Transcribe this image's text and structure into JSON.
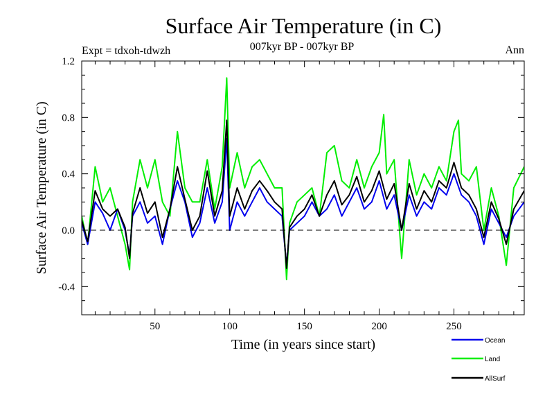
{
  "chart_data": {
    "type": "line",
    "title": "Surface Air Temperature (in C)",
    "subtitle": "007kyr BP - 007kyr BP",
    "left_label": "Expt = tdxoh-tdwzh",
    "right_label": "Ann",
    "xlabel": "Time (in years since start)",
    "ylabel": "Surface Air Temperature (in C)",
    "xlim": [
      1,
      297
    ],
    "ylim": [
      -0.6,
      1.2
    ],
    "xticks": [
      50,
      100,
      150,
      200,
      250
    ],
    "yticks": [
      -0.4,
      0.0,
      0.4,
      0.8,
      1.2
    ],
    "ytick_labels": [
      "-0.4",
      "0.0",
      "0.4",
      "0.8",
      "1.2"
    ],
    "reference_line": 0.0,
    "legend_position": "bottom-right",
    "series": [
      {
        "name": "Ocean",
        "color": "#0000ee",
        "x": [
          1,
          5,
          10,
          15,
          20,
          25,
          30,
          33,
          35,
          40,
          45,
          50,
          55,
          60,
          65,
          70,
          75,
          80,
          85,
          90,
          95,
          98,
          100,
          105,
          110,
          115,
          120,
          125,
          130,
          135,
          138,
          140,
          145,
          150,
          155,
          160,
          165,
          170,
          175,
          180,
          185,
          190,
          195,
          200,
          205,
          210,
          215,
          220,
          225,
          230,
          235,
          240,
          245,
          250,
          255,
          260,
          265,
          270,
          275,
          280,
          285,
          290,
          297
        ],
        "y": [
          0.05,
          -0.1,
          0.2,
          0.12,
          0.0,
          0.15,
          0.0,
          -0.18,
          0.1,
          0.2,
          0.05,
          0.1,
          -0.1,
          0.15,
          0.35,
          0.2,
          -0.05,
          0.05,
          0.3,
          0.05,
          0.2,
          0.65,
          0.0,
          0.2,
          0.1,
          0.2,
          0.3,
          0.2,
          0.15,
          0.1,
          -0.25,
          0.0,
          0.05,
          0.1,
          0.2,
          0.1,
          0.15,
          0.25,
          0.1,
          0.2,
          0.3,
          0.15,
          0.2,
          0.35,
          0.15,
          0.25,
          0.0,
          0.25,
          0.1,
          0.2,
          0.15,
          0.3,
          0.25,
          0.4,
          0.25,
          0.2,
          0.1,
          -0.1,
          0.15,
          0.05,
          -0.05,
          0.1,
          0.2
        ]
      },
      {
        "name": "Land",
        "color": "#00ee00",
        "x": [
          1,
          5,
          10,
          15,
          20,
          25,
          30,
          33,
          35,
          40,
          45,
          50,
          55,
          60,
          65,
          70,
          75,
          80,
          85,
          90,
          95,
          98,
          100,
          105,
          110,
          115,
          120,
          125,
          130,
          135,
          138,
          140,
          145,
          150,
          155,
          160,
          165,
          170,
          175,
          180,
          185,
          190,
          195,
          200,
          203,
          205,
          210,
          215,
          220,
          225,
          230,
          235,
          240,
          245,
          250,
          253,
          255,
          260,
          265,
          270,
          275,
          280,
          285,
          290,
          297
        ],
        "y": [
          0.1,
          -0.1,
          0.45,
          0.2,
          0.3,
          0.1,
          -0.1,
          -0.28,
          0.2,
          0.5,
          0.3,
          0.5,
          0.2,
          0.1,
          0.7,
          0.3,
          0.2,
          0.2,
          0.5,
          0.15,
          0.45,
          1.08,
          0.3,
          0.55,
          0.3,
          0.45,
          0.5,
          0.4,
          0.3,
          0.3,
          -0.35,
          0.05,
          0.2,
          0.25,
          0.3,
          0.1,
          0.55,
          0.6,
          0.35,
          0.3,
          0.5,
          0.3,
          0.45,
          0.55,
          0.82,
          0.4,
          0.5,
          -0.2,
          0.5,
          0.25,
          0.4,
          0.3,
          0.45,
          0.35,
          0.7,
          0.78,
          0.4,
          0.35,
          0.45,
          0.0,
          0.3,
          0.1,
          -0.25,
          0.3,
          0.45
        ]
      },
      {
        "name": "AllSurf",
        "color": "#000000",
        "x": [
          1,
          5,
          10,
          15,
          20,
          25,
          30,
          33,
          35,
          40,
          45,
          50,
          55,
          60,
          65,
          70,
          75,
          80,
          85,
          90,
          95,
          98,
          100,
          105,
          110,
          115,
          120,
          125,
          130,
          135,
          138,
          140,
          145,
          150,
          155,
          160,
          165,
          170,
          175,
          180,
          185,
          190,
          195,
          200,
          205,
          210,
          215,
          220,
          225,
          230,
          235,
          240,
          245,
          250,
          255,
          260,
          265,
          270,
          275,
          280,
          285,
          290,
          297
        ],
        "y": [
          0.07,
          -0.08,
          0.28,
          0.15,
          0.1,
          0.15,
          0.02,
          -0.2,
          0.12,
          0.3,
          0.12,
          0.2,
          -0.05,
          0.15,
          0.45,
          0.22,
          0.0,
          0.1,
          0.42,
          0.1,
          0.28,
          0.78,
          0.1,
          0.3,
          0.15,
          0.28,
          0.35,
          0.28,
          0.2,
          0.15,
          -0.27,
          0.02,
          0.1,
          0.15,
          0.25,
          0.1,
          0.25,
          0.35,
          0.18,
          0.25,
          0.38,
          0.2,
          0.28,
          0.42,
          0.22,
          0.33,
          0.0,
          0.33,
          0.15,
          0.28,
          0.2,
          0.35,
          0.3,
          0.48,
          0.3,
          0.25,
          0.15,
          -0.05,
          0.2,
          0.08,
          -0.1,
          0.15,
          0.28
        ]
      }
    ]
  }
}
